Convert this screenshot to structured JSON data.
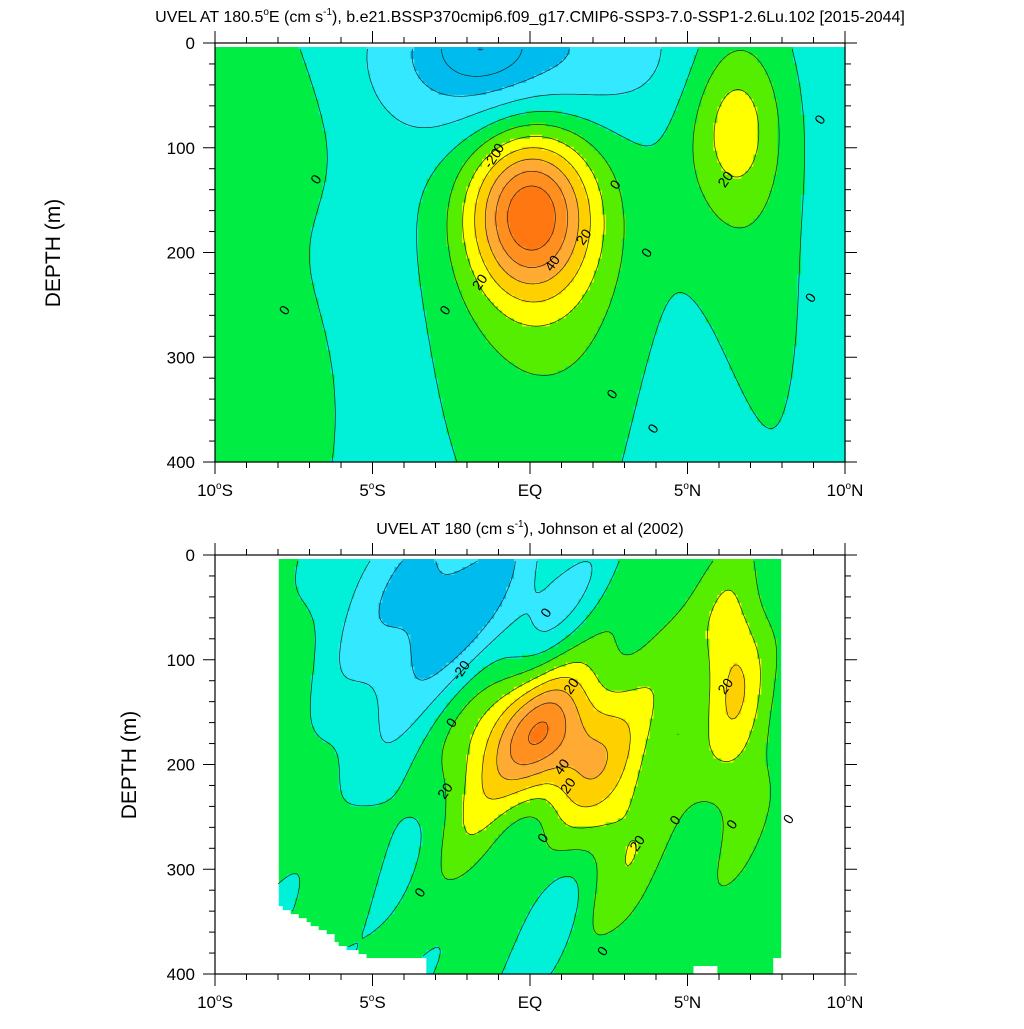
{
  "chart_data": [
    {
      "type": "contour",
      "title_main": "UVEL AT 180.5",
      "title_deg": "o",
      "title_unit": "E (cm s",
      "title_exp": "-1",
      "title_rest": "), b.e21.BSSP370cmip6.f09_g17.CMIP6-SSP3-7.0-SSP1-2.6Lu.102 [2015-2044]",
      "ylabel": "DEPTH (m)",
      "xlim": [
        -10,
        10
      ],
      "ylim": [
        400,
        0
      ],
      "x_ticks": [
        {
          "v": -10,
          "num": "10",
          "deg": "o",
          "hem": "S"
        },
        {
          "v": -5,
          "num": "5",
          "deg": "o",
          "hem": "S"
        },
        {
          "v": 0,
          "num": "",
          "deg": "",
          "hem": "EQ"
        },
        {
          "v": 5,
          "num": "5",
          "deg": "o",
          "hem": "N"
        },
        {
          "v": 10,
          "num": "10",
          "deg": "o",
          "hem": "N"
        }
      ],
      "y_ticks": [
        0,
        100,
        200,
        300,
        400
      ],
      "levels": [
        -40,
        -30,
        -20,
        -10,
        0,
        10,
        20,
        30,
        40,
        50,
        60,
        70
      ],
      "features": [
        {
          "name": "surface westward current",
          "lat": -1.5,
          "depth": 30,
          "speed": -30
        },
        {
          "name": "equatorial undercurrent core",
          "lat": 0.2,
          "depth": 160,
          "speed": 55
        },
        {
          "name": "north eastward current",
          "lat": 6.5,
          "depth": 70,
          "speed": 25
        }
      ],
      "contour_labels": [
        {
          "text": "-20",
          "lat": -1.2,
          "depth": 110
        },
        {
          "text": "0",
          "lat": -1.0,
          "depth": 100
        },
        {
          "text": "0",
          "lat": -6.8,
          "depth": 130
        },
        {
          "text": "0",
          "lat": -7.8,
          "depth": 255
        },
        {
          "text": "0",
          "lat": -2.7,
          "depth": 255
        },
        {
          "text": "20",
          "lat": 1.7,
          "depth": 185
        },
        {
          "text": "40",
          "lat": 0.7,
          "depth": 210
        },
        {
          "text": "20",
          "lat": -1.6,
          "depth": 228
        },
        {
          "text": "0",
          "lat": 2.7,
          "depth": 135
        },
        {
          "text": "0",
          "lat": 3.7,
          "depth": 200
        },
        {
          "text": "0",
          "lat": 2.6,
          "depth": 335
        },
        {
          "text": "0",
          "lat": 3.9,
          "depth": 368
        },
        {
          "text": "20",
          "lat": 6.2,
          "depth": 130
        },
        {
          "text": "0",
          "lat": 9.2,
          "depth": 73
        },
        {
          "text": "0",
          "lat": 8.9,
          "depth": 243
        }
      ]
    },
    {
      "type": "contour",
      "title_main": "UVEL AT 180 (cm s",
      "title_exp": "-1",
      "title_rest": "), Johnson et al (2002)",
      "ylabel": "DEPTH (m)",
      "xlim": [
        -10,
        10
      ],
      "ylim": [
        400,
        0
      ],
      "data_lat_range": [
        -8,
        8
      ],
      "x_ticks": [
        {
          "v": -10,
          "num": "10",
          "deg": "o",
          "hem": "S"
        },
        {
          "v": -5,
          "num": "5",
          "deg": "o",
          "hem": "S"
        },
        {
          "v": 0,
          "num": "",
          "deg": "",
          "hem": "EQ"
        },
        {
          "v": 5,
          "num": "5",
          "deg": "o",
          "hem": "N"
        },
        {
          "v": 10,
          "num": "10",
          "deg": "o",
          "hem": "N"
        }
      ],
      "y_ticks": [
        0,
        100,
        200,
        300,
        400
      ],
      "levels": [
        -40,
        -30,
        -20,
        -10,
        0,
        10,
        20,
        30,
        40,
        50,
        60,
        70
      ],
      "features": [
        {
          "name": "surface westward current",
          "lat": -2.2,
          "depth": 50,
          "speed": -25
        },
        {
          "name": "equatorial undercurrent core",
          "lat": 0.4,
          "depth": 170,
          "speed": 55
        },
        {
          "name": "north eastward current",
          "lat": 6.5,
          "depth": 90,
          "speed": 22
        }
      ],
      "contour_labels": [
        {
          "text": "0",
          "lat": 0.5,
          "depth": 55
        },
        {
          "text": "-20",
          "lat": -2.2,
          "depth": 110
        },
        {
          "text": "20",
          "lat": 1.3,
          "depth": 125
        },
        {
          "text": "0",
          "lat": -2.5,
          "depth": 160
        },
        {
          "text": "20",
          "lat": 6.2,
          "depth": 125
        },
        {
          "text": "40",
          "lat": 1.0,
          "depth": 202
        },
        {
          "text": "20",
          "lat": 1.2,
          "depth": 220
        },
        {
          "text": "20",
          "lat": -2.7,
          "depth": 225
        },
        {
          "text": "20",
          "lat": 3.4,
          "depth": 275
        },
        {
          "text": "0",
          "lat": 0.4,
          "depth": 270
        },
        {
          "text": "0",
          "lat": 4.6,
          "depth": 253
        },
        {
          "text": "0",
          "lat": 6.4,
          "depth": 257
        },
        {
          "text": "0",
          "lat": 8.2,
          "depth": 252
        },
        {
          "text": "0",
          "lat": -3.5,
          "depth": 322
        },
        {
          "text": "0",
          "lat": 2.3,
          "depth": 378
        }
      ]
    }
  ],
  "colors": {
    "lt_minus40": "#0099dd",
    "lt_minus20": "#00bbee",
    "lt_minus10": "#33e8ff",
    "lt_0": "#00f0d8",
    "lt_10": "#00ee44",
    "lt_20": "#55ee00",
    "lt_30": "#ffff00",
    "lt_40": "#ffd000",
    "lt_50": "#ffaa33",
    "lt_60": "#ff9020",
    "ge_60": "#ff7710",
    "contour_line": "#222222",
    "missing": "#ffffff"
  }
}
